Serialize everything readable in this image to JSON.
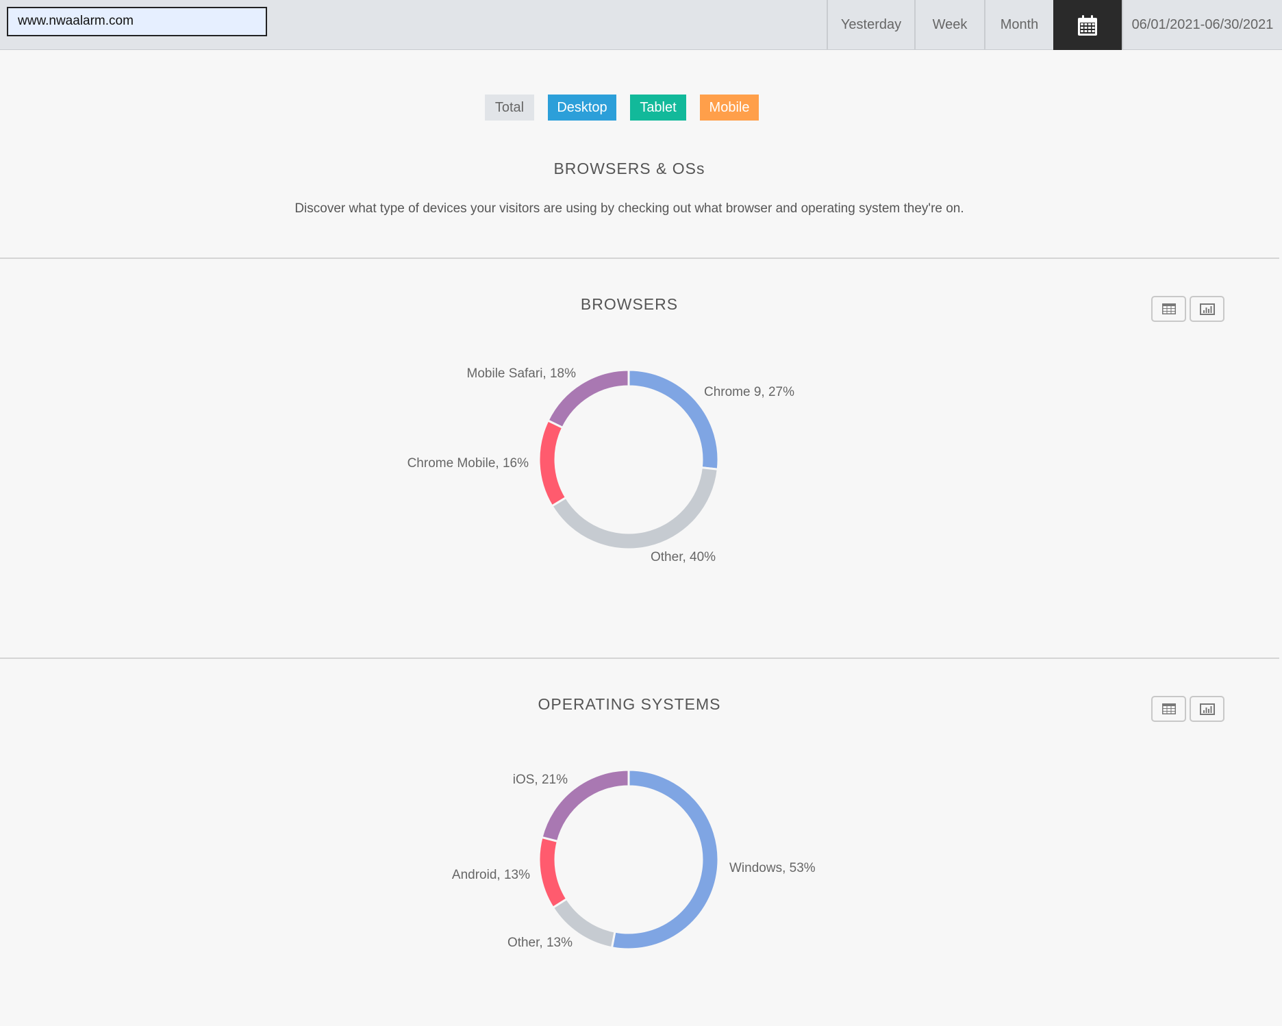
{
  "header": {
    "url_value": "www.nwaalarm.com",
    "nav": [
      "Yesterday",
      "Week",
      "Month"
    ],
    "calendar_icon": "calendar-icon",
    "date_range": "06/01/2021-06/30/2021"
  },
  "filters": [
    {
      "label": "Total",
      "color": "#e1e4e8",
      "text": "#666"
    },
    {
      "label": "Desktop",
      "color": "#2c9fd9"
    },
    {
      "label": "Tablet",
      "color": "#12b99a"
    },
    {
      "label": "Mobile",
      "color": "#ff9f4a"
    }
  ],
  "intro": {
    "title": "BROWSERS & OSs",
    "description": "Discover what type of devices your visitors are using by checking out what browser and operating system they're on."
  },
  "chart_data": [
    {
      "type": "pie",
      "title": "BROWSERS",
      "donut": true,
      "categories": [
        "Chrome 9",
        "Other",
        "Chrome Mobile",
        "Mobile Safari"
      ],
      "values": [
        27,
        40,
        16,
        18
      ],
      "labels": [
        "Chrome 9, 27%",
        "Other, 40%",
        "Chrome Mobile, 16%",
        "Mobile Safari, 18%"
      ],
      "colors": [
        "#7fa5e3",
        "#c6cbd1",
        "#ff5b6e",
        "#a978b2"
      ]
    },
    {
      "type": "pie",
      "title": "OPERATING SYSTEMS",
      "donut": true,
      "categories": [
        "Windows",
        "Other",
        "Android",
        "iOS"
      ],
      "values": [
        53,
        13,
        13,
        21
      ],
      "labels": [
        "Windows, 53%",
        "Other, 13%",
        "Android, 13%",
        "iOS, 21%"
      ],
      "colors": [
        "#7fa5e3",
        "#c6cbd1",
        "#ff5b6e",
        "#a978b2"
      ]
    }
  ],
  "view_icons": [
    "table-icon",
    "bar-chart-icon"
  ]
}
